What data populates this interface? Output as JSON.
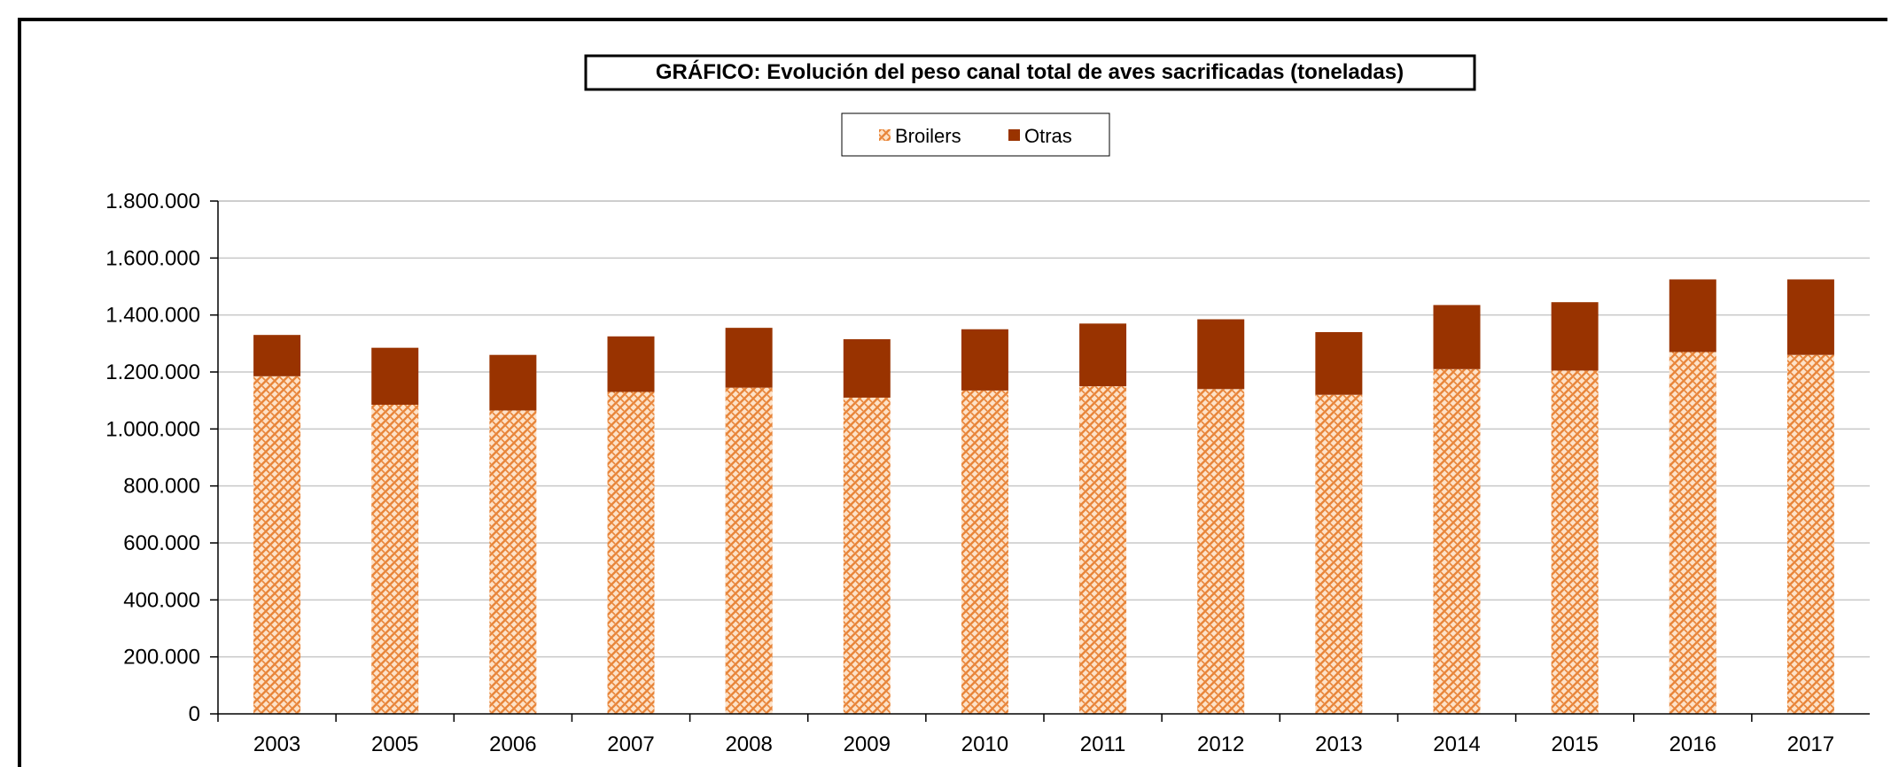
{
  "chart_data": {
    "type": "bar",
    "stacked": true,
    "title": "GRÁFICO: Evolución del peso canal total de aves sacrificadas (toneladas)",
    "legend_position": "top-center",
    "grid": true,
    "xlabel": "",
    "ylabel": "",
    "ylim": [
      0,
      1800000
    ],
    "y_ticks": [
      "0",
      "200.000",
      "400.000",
      "600.000",
      "800.000",
      "1.000.000",
      "1.200.000",
      "1.400.000",
      "1.600.000",
      "1.800.000"
    ],
    "categories": [
      "2003",
      "2005",
      "2006",
      "2007",
      "2008",
      "2009",
      "2010",
      "2011",
      "2012",
      "2013",
      "2014",
      "2015",
      "2016",
      "2017"
    ],
    "series": [
      {
        "name": "Broilers",
        "color": "#f5a25d",
        "pattern": "weave",
        "values": [
          1185000,
          1085000,
          1065000,
          1130000,
          1145000,
          1110000,
          1135000,
          1150000,
          1140000,
          1120000,
          1210000,
          1205000,
          1270000,
          1260000
        ]
      },
      {
        "name": "Otras",
        "color": "#993300",
        "values": [
          145000,
          200000,
          195000,
          195000,
          210000,
          205000,
          215000,
          220000,
          245000,
          220000,
          225000,
          240000,
          255000,
          265000
        ]
      }
    ]
  }
}
